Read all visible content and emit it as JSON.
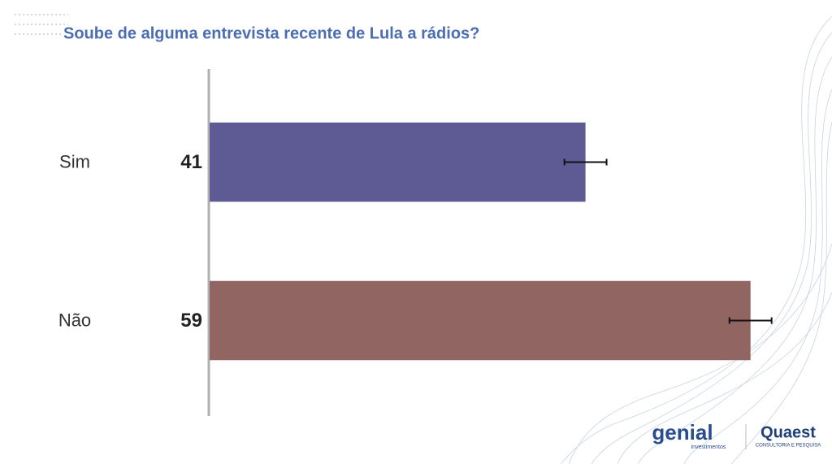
{
  "chart_data": {
    "type": "bar",
    "orientation": "horizontal",
    "title": "Soube de alguma entrevista recente de Lula a rádios?",
    "categories": [
      "Sim",
      "Não"
    ],
    "values": [
      41,
      59
    ],
    "errors": [
      2.3,
      2.3
    ],
    "colors": [
      "#5e5b94",
      "#916662"
    ],
    "xlim": [
      0,
      60
    ],
    "logos": [
      "genial",
      "investimentos",
      "Quaest",
      "CONSULTORIA E PESQUISA"
    ]
  }
}
